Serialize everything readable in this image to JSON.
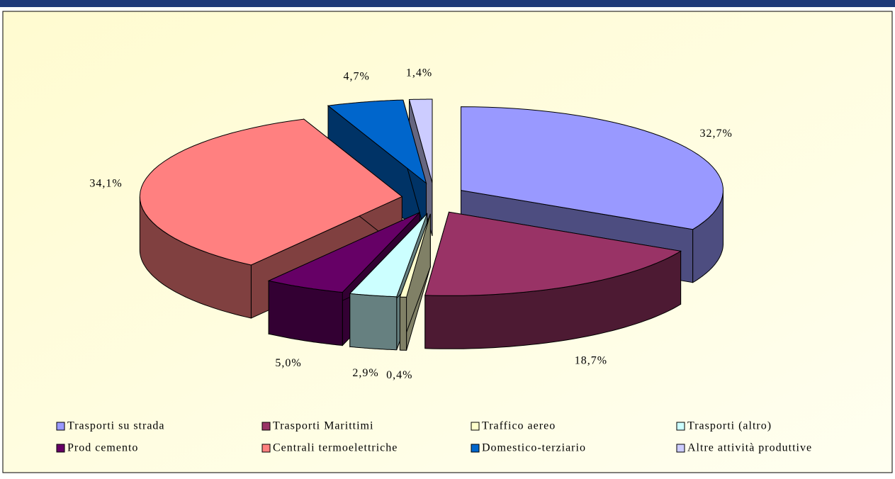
{
  "chart_data": {
    "type": "pie",
    "categories": [
      "Trasporti su strada",
      "Trasporti Marittimi",
      "Traffico aereo",
      "Trasporti (altro)",
      "Prod cemento",
      "Centrali termoelettriche",
      "Domestico-terziario",
      "Altre attività produttive"
    ],
    "values": [
      32.7,
      18.7,
      0.4,
      2.9,
      5.0,
      34.1,
      4.7,
      1.4
    ],
    "value_labels": [
      "32,7%",
      "18,7%",
      "0,4%",
      "2,9%",
      "5,0%",
      "34,1%",
      "4,7%",
      "1,4%"
    ],
    "colors": [
      "#9999ff",
      "#993366",
      "#ffffcc",
      "#ccffff",
      "#660066",
      "#ff8080",
      "#0066cc",
      "#ccccff"
    ],
    "legend": "bottom"
  }
}
